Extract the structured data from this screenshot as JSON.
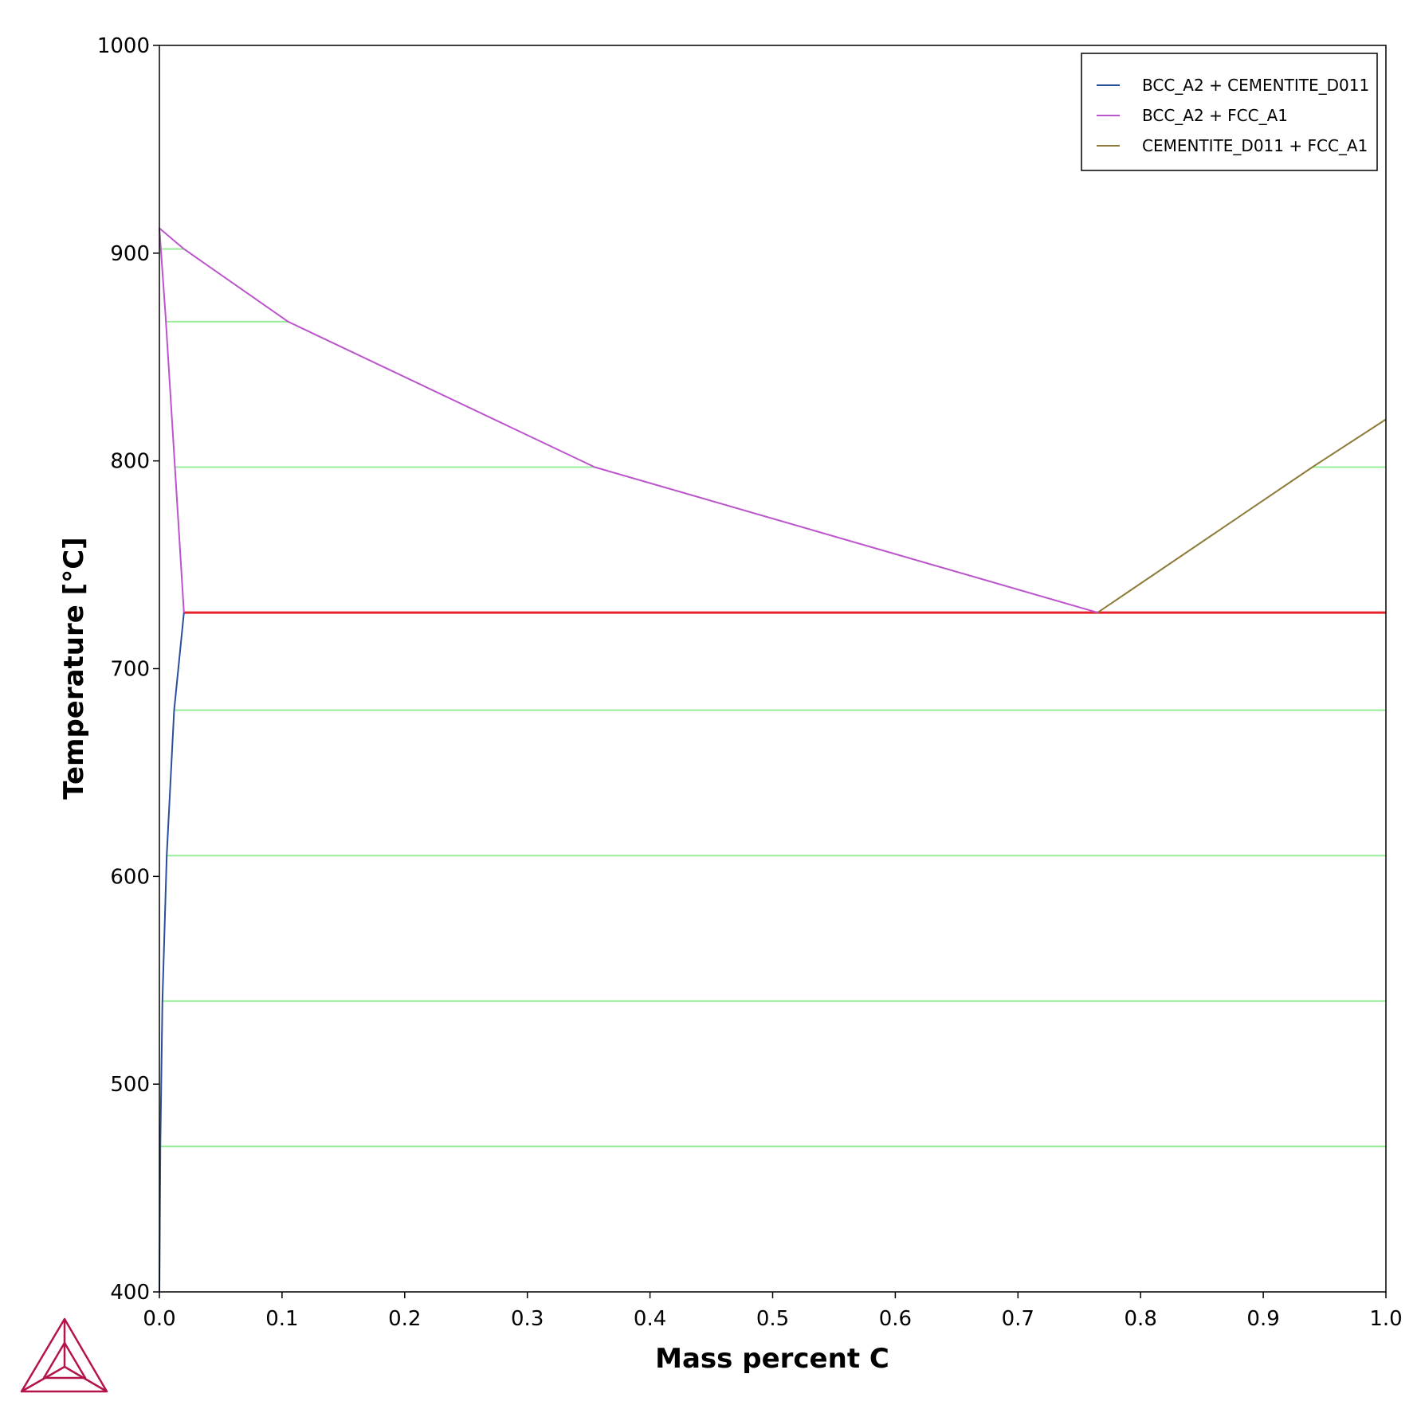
{
  "colors": {
    "background": "#ffffff",
    "axis": "#000000",
    "tie_line": "#99ee99",
    "isotherm": "#e8212a",
    "bcc_cementite": "#2a4f9a",
    "bcc_fcc": "#bb55cc",
    "cementite_fcc": "#8e7b3a",
    "logo": "#b5134b"
  },
  "icons": {
    "logo": "thermo-calc-logo-icon"
  },
  "chart_data": {
    "type": "line",
    "title": "",
    "xlabel": "Mass percent C",
    "ylabel": "Temperature [°C]",
    "xlim": [
      0.0,
      1.0
    ],
    "ylim": [
      400,
      1000
    ],
    "grid": false,
    "legend_position": "top-right",
    "x_ticks": [
      "0.0",
      "0.1",
      "0.2",
      "0.3",
      "0.4",
      "0.5",
      "0.6",
      "0.7",
      "0.8",
      "0.9",
      "1.0"
    ],
    "x_tick_values": [
      0.0,
      0.1,
      0.2,
      0.3,
      0.4,
      0.5,
      0.6,
      0.7,
      0.8,
      0.9,
      1.0
    ],
    "y_ticks": [
      "400",
      "500",
      "600",
      "700",
      "800",
      "900",
      "1000"
    ],
    "y_tick_values": [
      400,
      500,
      600,
      700,
      800,
      900,
      1000
    ],
    "series": [
      {
        "name": "BCC_A2 + CEMENTITE_D011",
        "color": "#2a4f9a",
        "x": [
          0.0,
          0.0008,
          0.0025,
          0.006,
          0.012,
          0.02
        ],
        "y": [
          400,
          470,
          540,
          610,
          680,
          727
        ]
      },
      {
        "name": "BCC_A2 + FCC_A1",
        "color": "#bb55cc",
        "x": [
          0.0,
          0.005,
          0.02
        ],
        "y": [
          912,
          870,
          727
        ]
      },
      {
        "name": "BCC_A2 + FCC_A1",
        "color": "#bb55cc",
        "x": [
          0.0,
          0.02,
          0.105,
          0.355,
          0.765
        ],
        "y": [
          912,
          902,
          867,
          797,
          727
        ]
      },
      {
        "name": "CEMENTITE_D011 + FCC_A1",
        "color": "#8e7b3a",
        "x": [
          0.765,
          0.94,
          1.0
        ],
        "y": [
          727,
          797,
          820
        ]
      }
    ],
    "legend": [
      {
        "label": "BCC_A2 + CEMENTITE_D011",
        "color": "#2a4f9a"
      },
      {
        "label": "BCC_A2 + FCC_A1",
        "color": "#bb55cc"
      },
      {
        "label": "CEMENTITE_D011 + FCC_A1",
        "color": "#8e7b3a"
      }
    ],
    "isotherm": {
      "y": 727,
      "x": [
        0.02,
        1.0
      ],
      "color": "#e8212a"
    },
    "tie_lines": [
      {
        "y": 902,
        "x": [
          0.0,
          0.02
        ]
      },
      {
        "y": 867,
        "x": [
          0.005,
          0.105
        ]
      },
      {
        "y": 797,
        "x": [
          0.012,
          0.355
        ]
      },
      {
        "y": 797,
        "x": [
          0.94,
          1.0
        ]
      },
      {
        "y": 680,
        "x": [
          0.012,
          1.0
        ]
      },
      {
        "y": 610,
        "x": [
          0.006,
          1.0
        ]
      },
      {
        "y": 540,
        "x": [
          0.0025,
          1.0
        ]
      },
      {
        "y": 470,
        "x": [
          0.0008,
          1.0
        ]
      }
    ]
  }
}
